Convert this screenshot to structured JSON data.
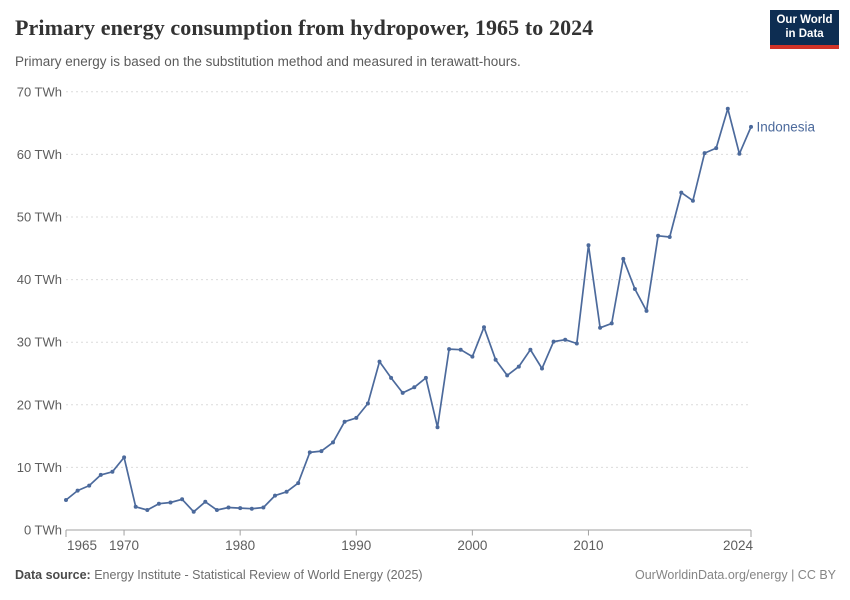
{
  "header": {
    "title": "Primary energy consumption from hydropower, 1965 to 2024",
    "subtitle": "Primary energy is based on the substitution method and measured in terawatt-hours.",
    "logo": {
      "line1": "Our World",
      "line2": "in Data",
      "bg_color": "#0d2d52",
      "bar_color": "#d13328",
      "text_color": "#ffffff"
    }
  },
  "chart_data": {
    "type": "line",
    "title": "Primary energy consumption from hydropower, 1965 to 2024",
    "subtitle": "Primary energy is based on the substitution method and measured in terawatt-hours.",
    "unit": "TWh",
    "xlabel": "",
    "ylabel": "",
    "xlim": [
      1965,
      2024
    ],
    "ylim": [
      0,
      70
    ],
    "grid": true,
    "grid_color": "#dcdcdc",
    "axis_color": "#a1a1a1",
    "tick_text_color": "#5e5e5e",
    "x_ticks": [
      1965,
      1970,
      1980,
      1990,
      2000,
      2010,
      2024
    ],
    "x_tick_labels": [
      "1965",
      "1970",
      "1980",
      "1990",
      "2000",
      "2010",
      "2024"
    ],
    "y_ticks": [
      0,
      10,
      20,
      30,
      40,
      50,
      60,
      70
    ],
    "y_tick_labels": [
      "0 TWh",
      "10 TWh",
      "20 TWh",
      "30 TWh",
      "40 TWh",
      "50 TWh",
      "60 TWh",
      "70 TWh"
    ],
    "legend_position": "end-of-line-label",
    "series": [
      {
        "name": "Indonesia",
        "color": "#4c6a9c",
        "x": [
          1965,
          1966,
          1967,
          1968,
          1969,
          1970,
          1971,
          1972,
          1973,
          1974,
          1975,
          1976,
          1977,
          1978,
          1979,
          1980,
          1981,
          1982,
          1983,
          1984,
          1985,
          1986,
          1987,
          1988,
          1989,
          1990,
          1991,
          1992,
          1993,
          1994,
          1995,
          1996,
          1997,
          1998,
          1999,
          2000,
          2001,
          2002,
          2003,
          2004,
          2005,
          2006,
          2007,
          2008,
          2009,
          2010,
          2011,
          2012,
          2013,
          2014,
          2015,
          2016,
          2017,
          2018,
          2019,
          2020,
          2021,
          2022,
          2023,
          2024
        ],
        "values": [
          4.8,
          6.3,
          7.1,
          8.8,
          9.3,
          11.6,
          3.7,
          3.2,
          4.2,
          4.4,
          4.9,
          2.9,
          4.5,
          3.2,
          3.6,
          3.5,
          3.4,
          3.6,
          5.5,
          6.1,
          7.5,
          12.4,
          12.6,
          14.0,
          17.3,
          17.9,
          20.2,
          26.9,
          24.3,
          21.9,
          22.8,
          24.3,
          16.4,
          28.9,
          28.8,
          27.7,
          32.4,
          27.2,
          24.7,
          26.1,
          28.8,
          25.8,
          30.1,
          30.4,
          29.8,
          45.5,
          32.3,
          33.0,
          43.3,
          38.5,
          35.0,
          47.0,
          46.8,
          53.9,
          52.6,
          60.2,
          61.0,
          67.3,
          60.1,
          64.4
        ]
      }
    ]
  },
  "footer": {
    "source_label": "Data source:",
    "source_text": " Energy Institute - Statistical Review of World Energy (2025)",
    "credit": "OurWorldinData.org/energy | CC BY"
  }
}
